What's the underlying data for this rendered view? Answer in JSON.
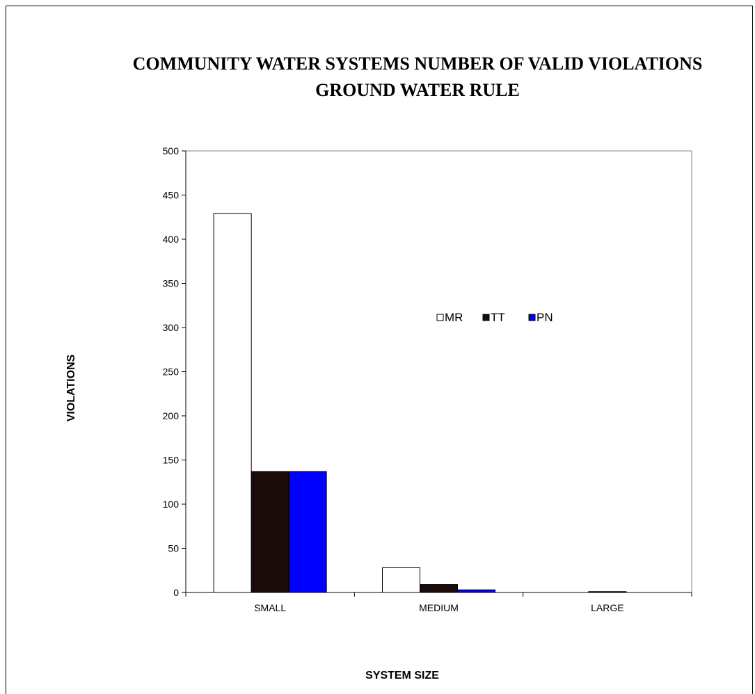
{
  "chart_data": {
    "type": "bar",
    "title_lines": [
      "COMMUNITY WATER SYSTEMS NUMBER OF VALID VIOLATIONS",
      "GROUND WATER RULE"
    ],
    "xlabel": "SYSTEM SIZE",
    "ylabel": "VIOLATIONS",
    "categories": [
      "SMALL",
      "MEDIUM",
      "LARGE"
    ],
    "ylim": [
      0,
      500
    ],
    "yticks": [
      0,
      50,
      100,
      150,
      200,
      250,
      300,
      350,
      400,
      450,
      500
    ],
    "grid": false,
    "legend_position": "center-right",
    "series": [
      {
        "name": "MR",
        "values": [
          429,
          28,
          0
        ],
        "color": "#ffffff"
      },
      {
        "name": "TT",
        "values": [
          137,
          9,
          1
        ],
        "color": "#1a0a0a"
      },
      {
        "name": "PN",
        "values": [
          137,
          3,
          0
        ],
        "color": "#0000ff"
      }
    ]
  }
}
